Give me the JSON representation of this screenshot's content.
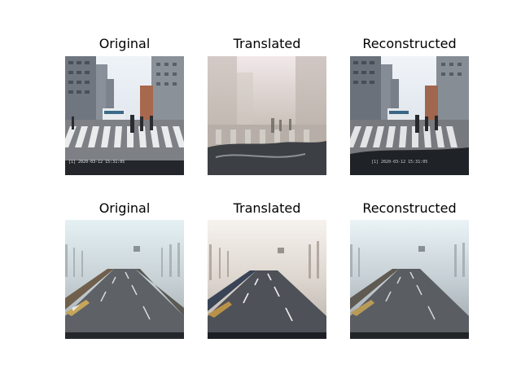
{
  "rows": [
    {
      "panels": [
        {
          "title": "Original",
          "scene": "city-crosswalk-clear",
          "stamp": "[1] 2020-03-12  15:31:05"
        },
        {
          "title": "Translated",
          "scene": "city-crosswalk-foggy"
        },
        {
          "title": "Reconstructed",
          "scene": "city-crosswalk-clear-recon",
          "stamp": "[1] 2020-03-12  15:31:05"
        }
      ]
    },
    {
      "panels": [
        {
          "title": "Original",
          "scene": "foggy-highway"
        },
        {
          "title": "Translated",
          "scene": "foggy-highway-clearer"
        },
        {
          "title": "Reconstructed",
          "scene": "foggy-highway-recon"
        }
      ]
    }
  ]
}
